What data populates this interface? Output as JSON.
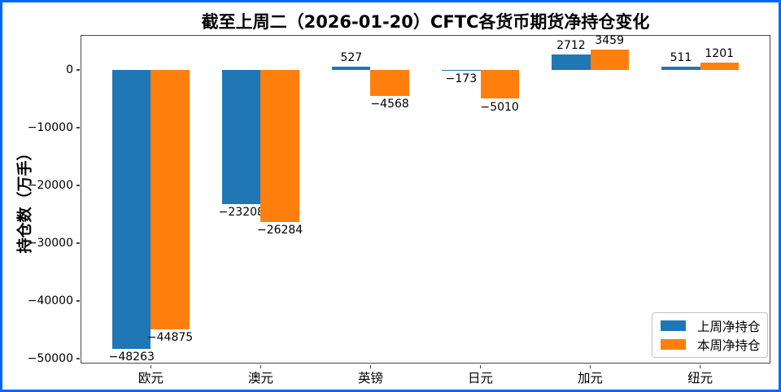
{
  "frame": {
    "border_color": "#0667ff",
    "background_color": "#ffffff"
  },
  "chart_data": {
    "type": "bar",
    "title": "截至上周二（2026-01-20）CFTC各货币期货净持仓变化",
    "xlabel": "",
    "ylabel": "持仓数（万手）",
    "categories": [
      "欧元",
      "澳元",
      "英镑",
      "日元",
      "加元",
      "纽元"
    ],
    "series": [
      {
        "name": "上周净持仓",
        "color": "#1f77b4",
        "values": [
          -48263,
          -23208,
          527,
          -173,
          2712,
          511
        ]
      },
      {
        "name": "本周净持仓",
        "color": "#ff7f0e",
        "values": [
          -44875,
          -26284,
          -4568,
          -5010,
          3459,
          1201
        ]
      }
    ],
    "ylim": [
      -50849,
      6045
    ],
    "yticks": [
      0,
      -10000,
      -20000,
      -30000,
      -40000,
      -50000
    ],
    "bar_value_labels": true,
    "legend_position": "lower right",
    "grid": false
  }
}
